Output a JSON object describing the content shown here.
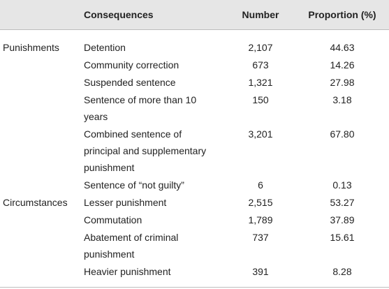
{
  "header": {
    "category": "",
    "consequences": "Consequences",
    "number": "Number",
    "proportion": "Proportion (%)"
  },
  "rows": [
    {
      "category": "Punishments",
      "consequence": [
        "Detention"
      ],
      "number": "2,107",
      "proportion": "44.63"
    },
    {
      "category": "",
      "consequence": [
        "Community correction"
      ],
      "number": "673",
      "proportion": "14.26"
    },
    {
      "category": "",
      "consequence": [
        "Suspended sentence"
      ],
      "number": "1,321",
      "proportion": "27.98"
    },
    {
      "category": "",
      "consequence": [
        "Sentence of more than 10",
        "years"
      ],
      "number": "150",
      "proportion": "3.18"
    },
    {
      "category": "",
      "consequence": [
        "Combined sentence of",
        "principal and supplementary",
        "punishment"
      ],
      "number": "3,201",
      "proportion": "67.80"
    },
    {
      "category": "",
      "consequence": [
        "Sentence of “not guilty”"
      ],
      "number": "6",
      "proportion": "0.13"
    },
    {
      "category": "Circumstances",
      "consequence": [
        "Lesser punishment"
      ],
      "number": "2,515",
      "proportion": "53.27"
    },
    {
      "category": "",
      "consequence": [
        "Commutation"
      ],
      "number": "1,789",
      "proportion": "37.89"
    },
    {
      "category": "",
      "consequence": [
        "Abatement of criminal",
        "punishment"
      ],
      "number": "737",
      "proportion": "15.61"
    },
    {
      "category": "",
      "consequence": [
        "Heavier punishment"
      ],
      "number": "391",
      "proportion": "8.28"
    }
  ]
}
